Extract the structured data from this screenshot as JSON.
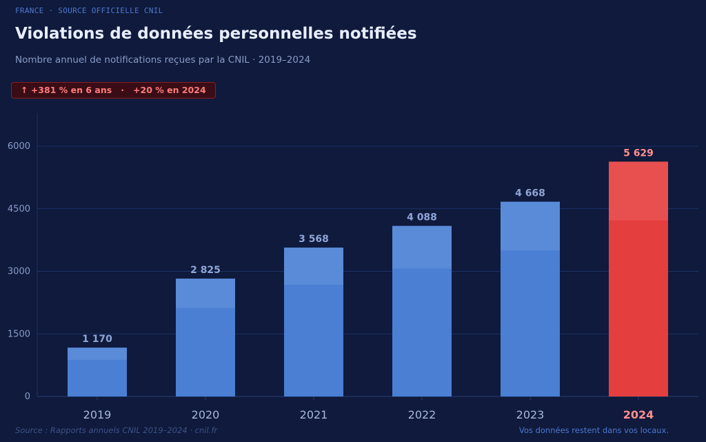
{
  "header": {
    "kicker": "FRANCE · SOURCE OFFICIELLE CNIL",
    "title": "Violations de données personnelles notifiées",
    "subtitle": "Nombre annuel de notifications reçues par la CNIL · 2019–2024",
    "badge": "↑ +381 % en 6 ans   ·   +20 % en 2024"
  },
  "footer": {
    "source": "Source : Rapports annuels CNIL 2019–2024 · cnil.fr",
    "note": "Vos données restent dans vos locaux."
  },
  "chart_data": {
    "type": "bar",
    "categories": [
      "2019",
      "2020",
      "2021",
      "2022",
      "2023",
      "2024"
    ],
    "values": [
      1170,
      2825,
      3568,
      4088,
      4668,
      5629
    ],
    "value_labels": [
      "1 170",
      "2 825",
      "3 568",
      "4 088",
      "4 668",
      "5 629"
    ],
    "highlight": "2024",
    "ylim": [
      0,
      6800
    ],
    "yticks": [
      0,
      1500,
      3000,
      4500,
      6000
    ],
    "grid": true,
    "colors": {
      "bar": "#4a7fd4",
      "bar_top": "#5a8bd8",
      "highlight": "#e53e3e",
      "highlight_top": "#e85050",
      "label": "#8fa5d6",
      "highlight_label": "#ff8f8f",
      "grid": "#1f3266"
    }
  }
}
